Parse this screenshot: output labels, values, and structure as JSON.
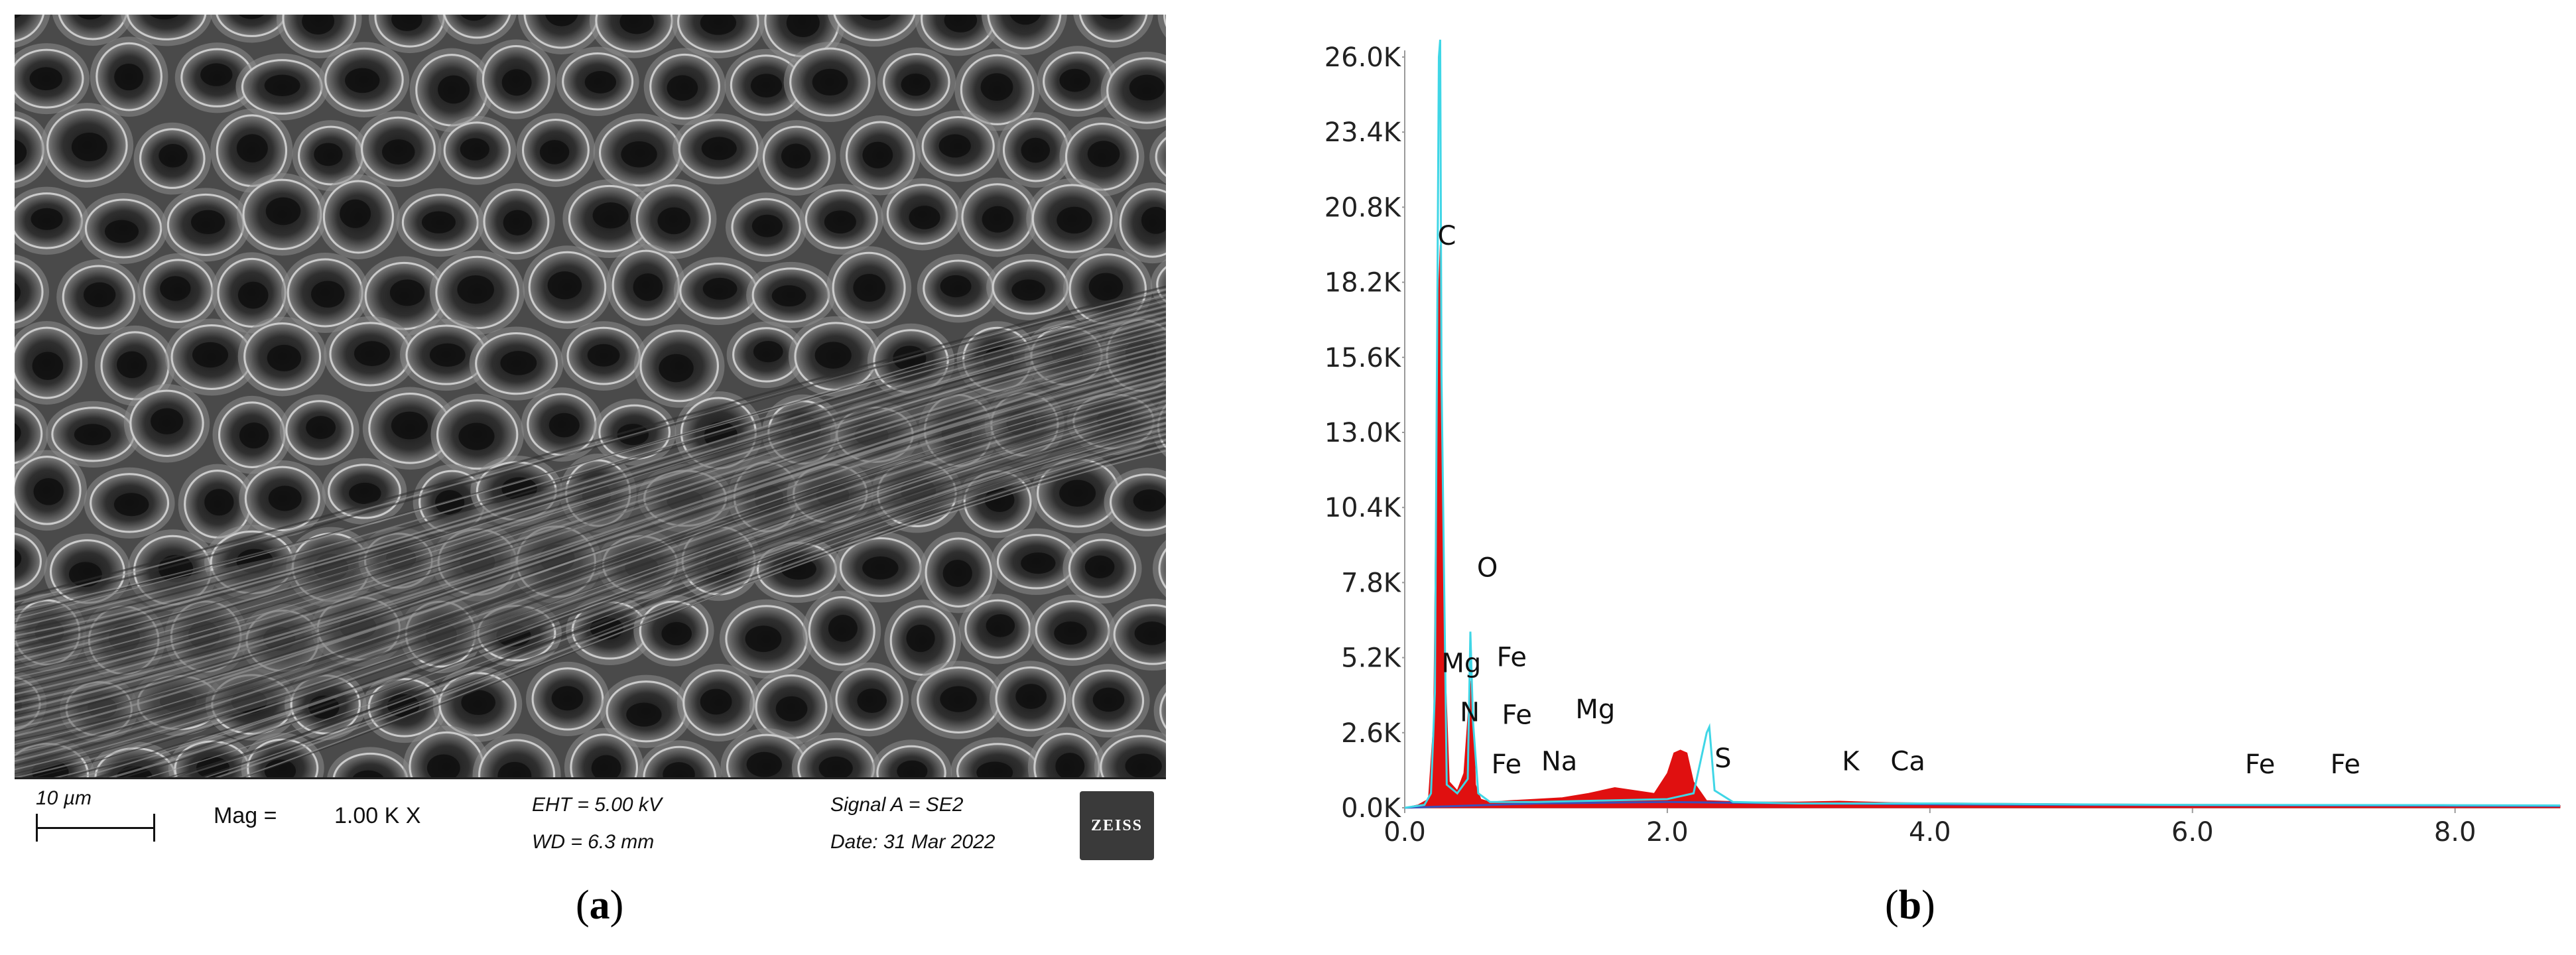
{
  "panel_a": {
    "label": "a",
    "scale_bar": "10 µm",
    "mag_label": "Mag =",
    "mag_value": "1.00 K X",
    "eht": "EHT = 5.00 kV",
    "wd": "WD = 6.3 mm",
    "signal": "Signal A = SE2",
    "date": "Date: 31 Mar 2022",
    "logo": "ZEISS"
  },
  "panel_b": {
    "label": "b"
  },
  "chart_data": {
    "type": "line",
    "title": "",
    "xlabel": "",
    "ylabel": "",
    "xlim": [
      0,
      8.8
    ],
    "ylim": [
      0,
      26000
    ],
    "x_ticks": [
      "0.0",
      "2.0",
      "4.0",
      "6.0",
      "8.0"
    ],
    "y_ticks": [
      "0.0K",
      "2.6K",
      "5.2K",
      "7.8K",
      "10.4K",
      "13.0K",
      "15.6K",
      "18.2K",
      "20.8K",
      "23.4K",
      "26.0K"
    ],
    "series": [
      {
        "color": "#e01010",
        "x": [
          0.0,
          0.1,
          0.18,
          0.22,
          0.25,
          0.27,
          0.3,
          0.34,
          0.4,
          0.45,
          0.5,
          0.52,
          0.54,
          0.58,
          0.65,
          0.8,
          1.0,
          1.2,
          1.4,
          1.6,
          1.75,
          1.9,
          2.0,
          2.05,
          2.1,
          2.15,
          2.2,
          2.3,
          2.6,
          3.0,
          3.31,
          3.7,
          4.0,
          5.0,
          6.0,
          7.0,
          8.0,
          8.8
        ],
        "y": [
          0,
          100,
          300,
          3000,
          17000,
          19500,
          6000,
          900,
          600,
          1200,
          4400,
          3500,
          800,
          300,
          200,
          250,
          300,
          350,
          500,
          700,
          600,
          500,
          1200,
          1900,
          2000,
          1900,
          900,
          250,
          200,
          200,
          230,
          180,
          170,
          140,
          120,
          110,
          100,
          80
        ]
      },
      {
        "color": "#3fd6e6",
        "x": [
          0.0,
          0.15,
          0.2,
          0.23,
          0.26,
          0.27,
          0.28,
          0.32,
          0.4,
          0.48,
          0.5,
          0.52,
          0.56,
          0.65,
          1.0,
          1.5,
          2.0,
          2.2,
          2.3,
          2.32,
          2.36,
          2.5,
          3.0,
          4.0,
          5.0,
          6.0,
          8.0,
          8.8
        ],
        "y": [
          0,
          100,
          500,
          4000,
          26000,
          26600,
          15000,
          800,
          500,
          1000,
          6100,
          3000,
          500,
          200,
          200,
          250,
          300,
          500,
          2600,
          2800,
          600,
          200,
          150,
          150,
          120,
          100,
          90,
          80
        ]
      },
      {
        "color": "#3b4fb8",
        "x": [
          0.0,
          1.0,
          2.0,
          3.0,
          4.0,
          5.0,
          6.0,
          7.0,
          8.0,
          8.8
        ],
        "y": [
          0,
          150,
          200,
          150,
          120,
          100,
          90,
          80,
          70,
          60
        ]
      }
    ],
    "annotations": [
      {
        "text": "C",
        "x": 0.25,
        "y": 19500
      },
      {
        "text": "O",
        "x": 0.55,
        "y": 8000
      },
      {
        "text": "Mg",
        "x": 0.28,
        "y": 4700
      },
      {
        "text": "Fe",
        "x": 0.7,
        "y": 4900
      },
      {
        "text": "N",
        "x": 0.42,
        "y": 3000
      },
      {
        "text": "Fe",
        "x": 0.74,
        "y": 2900
      },
      {
        "text": "Mg",
        "x": 1.3,
        "y": 3100
      },
      {
        "text": "Fe",
        "x": 0.66,
        "y": 1200
      },
      {
        "text": "Na",
        "x": 1.04,
        "y": 1300
      },
      {
        "text": "S",
        "x": 2.36,
        "y": 1400
      },
      {
        "text": "K",
        "x": 3.33,
        "y": 1300
      },
      {
        "text": "Ca",
        "x": 3.7,
        "y": 1300
      },
      {
        "text": "Fe",
        "x": 6.4,
        "y": 1200
      },
      {
        "text": "Fe",
        "x": 7.05,
        "y": 1200
      }
    ]
  }
}
